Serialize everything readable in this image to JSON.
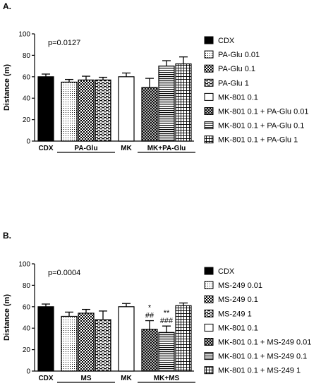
{
  "chart_data": [
    {
      "type": "bar",
      "panel_label": "A.",
      "annotation": "p=0.0127",
      "ylabel": "Distance (m)",
      "ylim": [
        0,
        100
      ],
      "yticks": [
        0,
        20,
        40,
        60,
        80,
        100
      ],
      "series": [
        {
          "name": "CDX",
          "value": 60,
          "error": 2.5,
          "pattern": "solid"
        },
        {
          "name": "PA-Glu 0.01",
          "value": 55,
          "error": 2.5,
          "pattern": "dots"
        },
        {
          "name": "PA-Glu 0.1",
          "value": 57,
          "error": 3.5,
          "pattern": "check"
        },
        {
          "name": "PA-Glu 1",
          "value": 57,
          "error": 2.5,
          "pattern": "hdash"
        },
        {
          "name": "MK-801 0.1",
          "value": 60,
          "error": 3.5,
          "pattern": "white"
        },
        {
          "name": "MK-801 0.1 + PA-Glu 0.01",
          "value": 50,
          "error": 8.5,
          "pattern": "crosshatch"
        },
        {
          "name": "MK-801 0.1 + PA-Glu 0.1",
          "value": 70,
          "error": 5,
          "pattern": "hlines"
        },
        {
          "name": "MK-801 0.1 + PA-Glu 1",
          "value": 72,
          "error": 6.5,
          "pattern": "grid"
        }
      ],
      "groups": [
        {
          "label": "CDX",
          "bars": [
            0
          ],
          "underline": false
        },
        {
          "label": "PA-Glu",
          "bars": [
            1,
            2,
            3
          ],
          "underline": true
        },
        {
          "label": "MK",
          "bars": [
            4
          ],
          "underline": false
        },
        {
          "label": "MK+PA-Glu",
          "bars": [
            5,
            6,
            7
          ],
          "underline": true
        }
      ],
      "significance": []
    },
    {
      "type": "bar",
      "panel_label": "B.",
      "annotation": "p=0.0004",
      "ylabel": "Distance (m)",
      "ylim": [
        0,
        100
      ],
      "yticks": [
        0,
        20,
        40,
        60,
        80,
        100
      ],
      "series": [
        {
          "name": "CDX",
          "value": 60,
          "error": 2.5,
          "pattern": "solid"
        },
        {
          "name": "MS-249 0.01",
          "value": 51,
          "error": 4,
          "pattern": "dots"
        },
        {
          "name": "MS-249 0.1",
          "value": 54,
          "error": 3.5,
          "pattern": "check"
        },
        {
          "name": "MS-249 1",
          "value": 48,
          "error": 8,
          "pattern": "hdash"
        },
        {
          "name": "MK-801 0.1",
          "value": 60,
          "error": 3,
          "pattern": "white"
        },
        {
          "name": "MK-801 0.1 + MS-249 0.01",
          "value": 39,
          "error": 8,
          "pattern": "crosshatch"
        },
        {
          "name": "MK-801 0.1 + MS-249 0.1",
          "value": 36,
          "error": 6,
          "pattern": "hlines"
        },
        {
          "name": "MK-801 0.1 + MS-249 1",
          "value": 61,
          "error": 2.5,
          "pattern": "grid"
        }
      ],
      "groups": [
        {
          "label": "CDX",
          "bars": [
            0
          ],
          "underline": false
        },
        {
          "label": "MS",
          "bars": [
            1,
            2,
            3
          ],
          "underline": true
        },
        {
          "label": "MK",
          "bars": [
            4
          ],
          "underline": false
        },
        {
          "label": "MK+MS",
          "bars": [
            5,
            6,
            7
          ],
          "underline": true
        }
      ],
      "significance": [
        {
          "bar": 5,
          "lines": [
            "*",
            "##"
          ]
        },
        {
          "bar": 6,
          "lines": [
            "**",
            "###"
          ]
        }
      ]
    }
  ]
}
